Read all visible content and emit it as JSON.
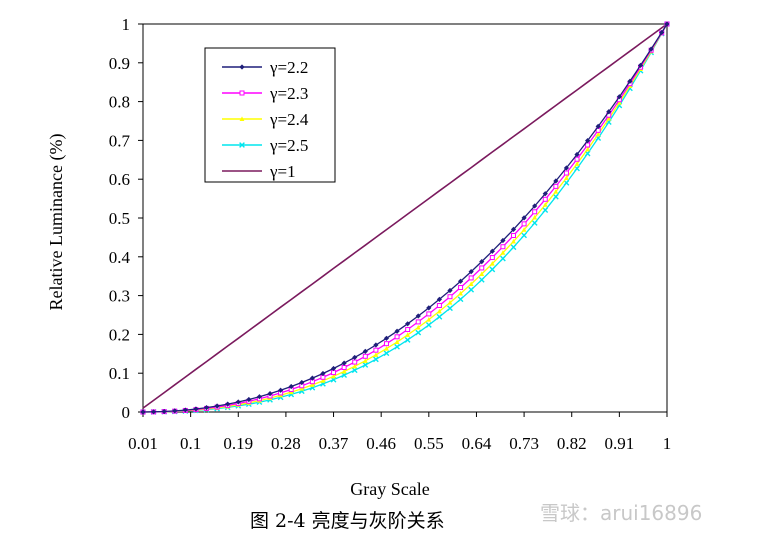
{
  "chart_data": {
    "type": "line",
    "title": "",
    "xlabel": "Gray Scale",
    "ylabel": "Relative Luminance (%)",
    "xlim": [
      0.01,
      1.0
    ],
    "ylim": [
      0,
      1
    ],
    "x_tick_labels": [
      "0.01",
      "0.1",
      "0.19",
      "0.28",
      "0.37",
      "0.46",
      "0.55",
      "0.64",
      "0.73",
      "0.82",
      "0.91",
      "1"
    ],
    "y_tick_labels": [
      "0",
      "0.1",
      "0.2",
      "0.3",
      "0.4",
      "0.5",
      "0.6",
      "0.7",
      "0.8",
      "0.9",
      "1"
    ],
    "x": [
      0.01,
      0.03,
      0.05,
      0.07,
      0.09,
      0.11,
      0.13,
      0.15,
      0.17,
      0.19,
      0.21,
      0.23,
      0.25,
      0.27,
      0.29,
      0.31,
      0.33,
      0.35,
      0.37,
      0.39,
      0.41,
      0.43,
      0.45,
      0.47,
      0.49,
      0.51,
      0.53,
      0.55,
      0.57,
      0.59,
      0.61,
      0.63,
      0.65,
      0.67,
      0.69,
      0.71,
      0.73,
      0.75,
      0.77,
      0.79,
      0.81,
      0.83,
      0.85,
      0.87,
      0.89,
      0.91,
      0.93,
      0.95,
      0.97,
      0.99,
      1.0
    ],
    "series": [
      {
        "name": "γ=2.2",
        "gamma": 2.2,
        "color": "#1f1f7a",
        "marker": "diamond"
      },
      {
        "name": "γ=2.3",
        "gamma": 2.3,
        "color": "#ff00ff",
        "marker": "square"
      },
      {
        "name": "γ=2.4",
        "gamma": 2.4,
        "color": "#ffff00",
        "marker": "triangle"
      },
      {
        "name": "γ=2.5",
        "gamma": 2.5,
        "color": "#00e5ee",
        "marker": "cross"
      },
      {
        "name": "γ=1",
        "gamma": 1.0,
        "color": "#7b1a5e",
        "marker": "none"
      }
    ],
    "legend_position": "top-left",
    "grid": false
  },
  "caption": "图 2-4  亮度与灰阶关系",
  "watermark": "雪球：arui16896"
}
